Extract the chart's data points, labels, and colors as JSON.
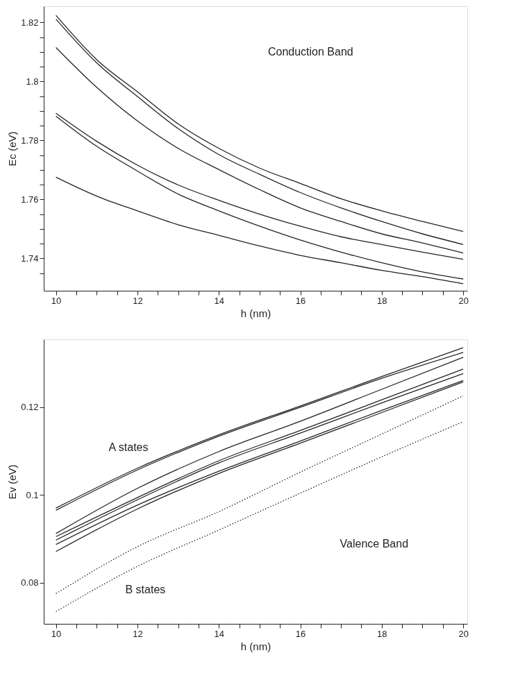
{
  "chart_data": [
    {
      "type": "line",
      "xlabel": "h (nm)",
      "ylabel": "Ec  (eV)",
      "xlim": [
        9.7,
        20.1
      ],
      "ylim": [
        1.729,
        1.8255
      ],
      "xticks": [
        10,
        {
          "value": 10.5,
          "label": null
        },
        {
          "value": 11,
          "label": null
        },
        {
          "value": 11.5,
          "label": null
        },
        12,
        {
          "value": 12.5,
          "label": null
        },
        {
          "value": 13,
          "label": null
        },
        {
          "value": 13.5,
          "label": null
        },
        14,
        {
          "value": 14.5,
          "label": null
        },
        {
          "value": 15,
          "label": null
        },
        {
          "value": 15.5,
          "label": null
        },
        16,
        {
          "value": 16.5,
          "label": null
        },
        {
          "value": 17,
          "label": null
        },
        {
          "value": 17.5,
          "label": null
        },
        18,
        {
          "value": 18.5,
          "label": null
        },
        {
          "value": 19,
          "label": null
        },
        {
          "value": 19.5,
          "label": null
        },
        20
      ],
      "yticks": [
        {
          "value": 1.735,
          "label": null
        },
        1.74,
        {
          "value": 1.745,
          "label": null
        },
        {
          "value": 1.75,
          "label": null
        },
        {
          "value": 1.755,
          "label": null
        },
        1.76,
        {
          "value": 1.765,
          "label": null
        },
        {
          "value": 1.77,
          "label": null
        },
        {
          "value": 1.775,
          "label": null
        },
        1.78,
        {
          "value": 1.785,
          "label": null
        },
        {
          "value": 1.79,
          "label": null
        },
        {
          "value": 1.795,
          "label": null
        },
        1.8,
        {
          "value": 1.805,
          "label": null
        },
        {
          "value": 1.81,
          "label": null
        },
        {
          "value": 1.815,
          "label": null
        },
        1.82
      ],
      "x": [
        10,
        11,
        12,
        13,
        14,
        15,
        16,
        17,
        18,
        19,
        20
      ],
      "grid": false,
      "line_style": "solid",
      "series": [
        {
          "color": "#222222",
          "values": [
            1.8224,
            1.8074,
            1.7965,
            1.7856,
            1.7773,
            1.7706,
            1.7654,
            1.7602,
            1.7561,
            1.7525,
            1.7491
          ]
        },
        {
          "color": "#222222",
          "values": [
            1.8211,
            1.8063,
            1.7949,
            1.784,
            1.7752,
            1.7685,
            1.7623,
            1.7571,
            1.7525,
            1.7483,
            1.7447
          ]
        },
        {
          "color": "#222222",
          "values": [
            1.8115,
            1.798,
            1.7866,
            1.7773,
            1.7701,
            1.7633,
            1.7571,
            1.7525,
            1.7483,
            1.7452,
            1.7418
          ]
        },
        {
          "color": "#222222",
          "values": [
            1.7892,
            1.7797,
            1.7716,
            1.7649,
            1.7597,
            1.755,
            1.7509,
            1.7473,
            1.7447,
            1.7421,
            1.7397
          ]
        },
        {
          "color": "#222222",
          "values": [
            1.7882,
            1.778,
            1.7696,
            1.7618,
            1.7561,
            1.7509,
            1.7462,
            1.7421,
            1.7385,
            1.7354,
            1.733
          ]
        },
        {
          "color": "#222222",
          "values": [
            1.7675,
            1.7611,
            1.7561,
            1.7514,
            1.7478,
            1.7442,
            1.741,
            1.7385,
            1.7359,
            1.7338,
            1.7314
          ]
        }
      ],
      "annotations": [
        "Conduction Band"
      ]
    },
    {
      "type": "line",
      "xlabel": "h  (nm)",
      "ylabel": "Ev  (eV)",
      "xlim": [
        9.7,
        20.1
      ],
      "ylim": [
        0.0706,
        0.1355
      ],
      "xticks": [
        10,
        {
          "value": 10.5,
          "label": null
        },
        {
          "value": 11,
          "label": null
        },
        {
          "value": 11.5,
          "label": null
        },
        12,
        {
          "value": 12.5,
          "label": null
        },
        {
          "value": 13,
          "label": null
        },
        {
          "value": 13.5,
          "label": null
        },
        14,
        {
          "value": 14.5,
          "label": null
        },
        {
          "value": 15,
          "label": null
        },
        {
          "value": 15.5,
          "label": null
        },
        16,
        {
          "value": 16.5,
          "label": null
        },
        {
          "value": 17,
          "label": null
        },
        {
          "value": 17.5,
          "label": null
        },
        18,
        {
          "value": 18.5,
          "label": null
        },
        {
          "value": 19,
          "label": null
        },
        {
          "value": 19.5,
          "label": null
        },
        20
      ],
      "yticks": [
        0.08,
        {
          "value": 0.1,
          "label": "0.1"
        },
        0.12
      ],
      "x": [
        10,
        12,
        14,
        16,
        18,
        20
      ],
      "grid": false,
      "series": [
        {
          "color": "#222222",
          "line_style": "solid",
          "values": [
            0.097,
            0.1061,
            0.1137,
            0.1203,
            0.127,
            0.1336
          ]
        },
        {
          "color": "#222222",
          "line_style": "solid",
          "values": [
            0.0965,
            0.1057,
            0.1134,
            0.12,
            0.1266,
            0.1325
          ]
        },
        {
          "color": "#222222",
          "line_style": "solid",
          "values": [
            0.0912,
            0.1015,
            0.1099,
            0.1168,
            0.1241,
            0.1314
          ]
        },
        {
          "color": "#222222",
          "line_style": "solid",
          "values": [
            0.0905,
            0.0994,
            0.1078,
            0.1147,
            0.1217,
            0.1287
          ]
        },
        {
          "color": "#222222",
          "line_style": "solid",
          "values": [
            0.0897,
            0.0989,
            0.1073,
            0.1141,
            0.121,
            0.1277
          ]
        },
        {
          "color": "#222222",
          "line_style": "solid",
          "values": [
            0.0887,
            0.0977,
            0.1054,
            0.1123,
            0.1193,
            0.1261
          ]
        },
        {
          "color": "#222222",
          "line_style": "solid",
          "values": [
            0.0871,
            0.0968,
            0.1049,
            0.1118,
            0.1188,
            0.1258
          ]
        },
        {
          "color": "#222222",
          "line_style": "dotted",
          "values": [
            0.0775,
            0.0882,
            0.0962,
            0.1052,
            0.1139,
            0.1226
          ]
        },
        {
          "color": "#222222",
          "line_style": "dotted",
          "values": [
            0.0734,
            0.0837,
            0.092,
            0.1004,
            0.1087,
            0.1167
          ]
        }
      ],
      "annotations": [
        "A states",
        "Valence Band",
        "B states"
      ]
    }
  ]
}
